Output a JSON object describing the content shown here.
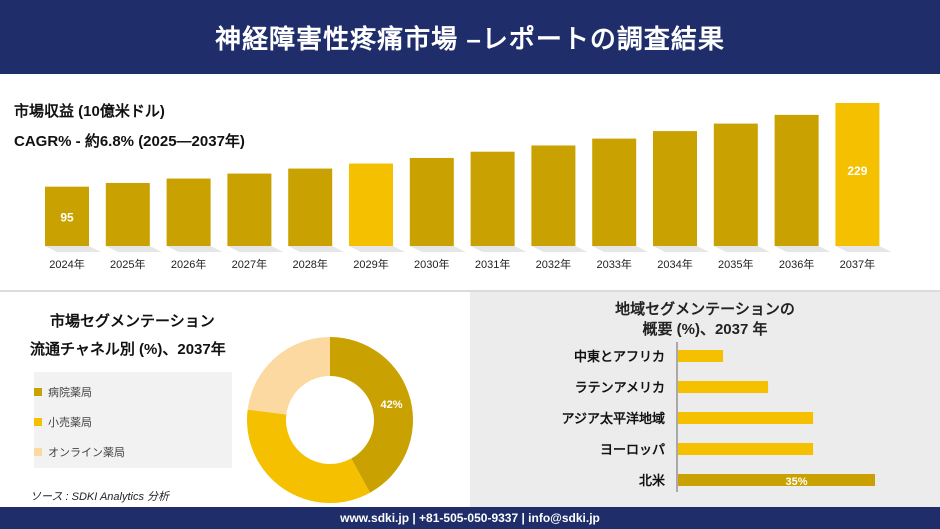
{
  "header": {
    "title": "神経障害性疼痛市場 –レポートの調査結果"
  },
  "revenue": {
    "label": "市場収益 (10億米ドル)",
    "cagr": "CAGR% - 約6.8% (2025—2037年)"
  },
  "segment": {
    "title1": "市場セグメンテーション",
    "title2": "流通チャネル別 (%)、2037年",
    "legend": [
      {
        "label": "病院薬局",
        "color": "#c9a100"
      },
      {
        "label": "小売薬局",
        "color": "#f5c000"
      },
      {
        "label": "オンライン薬局",
        "color": "#fbd9a0"
      }
    ]
  },
  "region": {
    "title1": "地域セグメンテーションの",
    "title2": "概要 (%)、2037 年"
  },
  "source": "ソース : SDKI Analytics 分析",
  "footer": {
    "text": "www.sdki.jp | +81-505-050-9337 | info@sdki.jp"
  },
  "chart_data": [
    {
      "type": "bar",
      "categories": [
        "2024年",
        "2025年",
        "2026年",
        "2027年",
        "2028年",
        "2029年",
        "2030年",
        "2031年",
        "2032年",
        "2033年",
        "2034年",
        "2035年",
        "2036年",
        "2037年"
      ],
      "values": [
        95,
        101,
        108,
        116,
        124,
        132,
        141,
        151,
        161,
        172,
        184,
        196,
        210,
        229
      ],
      "data_labels": {
        "0": "95",
        "13": "229"
      },
      "colors": [
        "#c9a100",
        "#c9a100",
        "#c9a100",
        "#c9a100",
        "#c9a100",
        "#f5c000",
        "#c9a100",
        "#c9a100",
        "#c9a100",
        "#c9a100",
        "#c9a100",
        "#c9a100",
        "#c9a100",
        "#f5c000"
      ]
    },
    {
      "type": "pie",
      "subtype": "donut",
      "labels": [
        "病院薬局",
        "小売薬局",
        "オンライン薬局"
      ],
      "values": [
        42,
        35,
        23
      ],
      "colors": [
        "#c9a100",
        "#f5c000",
        "#fbd9a0"
      ],
      "data_labels": {
        "0": "42%"
      }
    },
    {
      "type": "bar",
      "orientation": "horizontal",
      "categories": [
        "中東とアフリカ",
        "ラテンアメリカ",
        "アジア太平洋地域",
        "ヨーロッパ",
        "北米"
      ],
      "values": [
        8,
        16,
        24,
        24,
        35
      ],
      "colors": [
        "#f5c000",
        "#f5c000",
        "#f5c000",
        "#f5c000",
        "#c9a100"
      ],
      "data_labels": {
        "4": "35%"
      }
    }
  ]
}
